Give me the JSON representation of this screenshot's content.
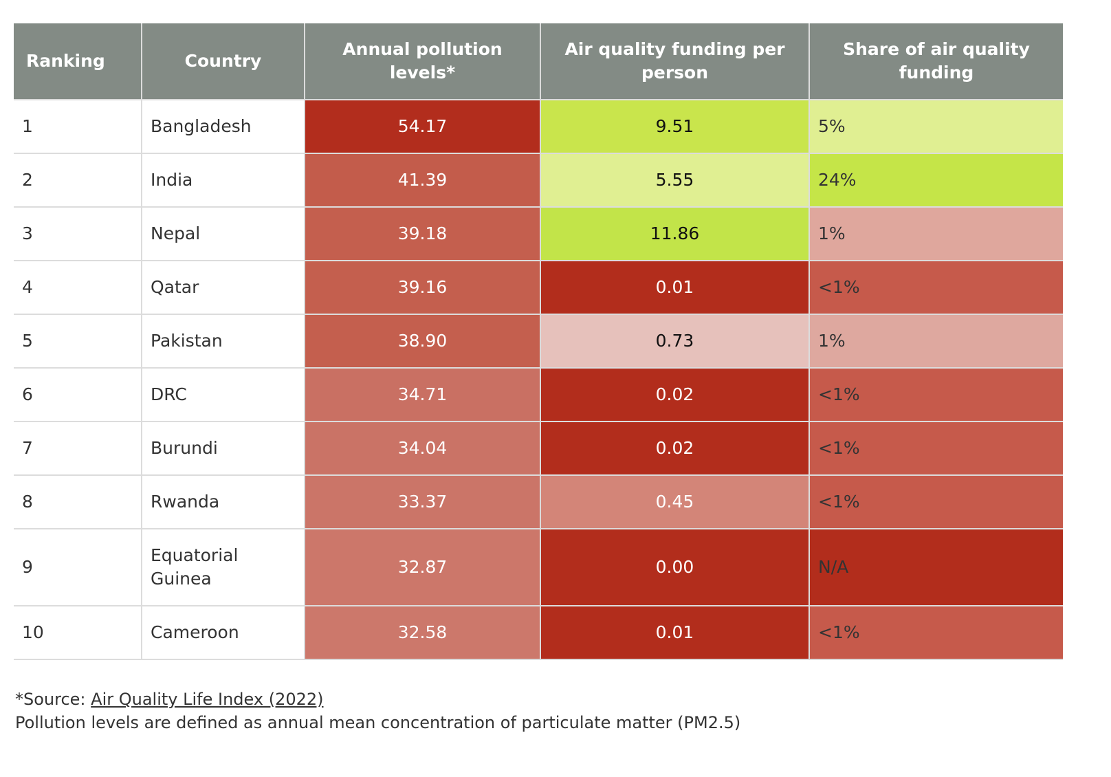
{
  "table": {
    "headers": [
      "Ranking",
      "Country",
      "Annual pollution levels*",
      "Air quality funding per person",
      "Share of air quality funding"
    ],
    "rows": [
      {
        "ranking": "1",
        "country": "Bangladesh",
        "pollution": "54.17",
        "funding_per_person": "9.51",
        "share": "5%",
        "colors": {
          "pollution": "#b22d1d",
          "funding_per_person": "#c9e54c",
          "share": "#e0ef92"
        },
        "text_colors": {
          "pollution": "#ffffff",
          "funding_per_person": "#111111",
          "share": "#333333"
        }
      },
      {
        "ranking": "2",
        "country": "India",
        "pollution": "41.39",
        "funding_per_person": "5.55",
        "share": "24%",
        "colors": {
          "pollution": "#c35c4b",
          "funding_per_person": "#e0ef92",
          "share": "#c5e548"
        },
        "text_colors": {
          "pollution": "#ffffff",
          "funding_per_person": "#111111",
          "share": "#333333"
        }
      },
      {
        "ranking": "3",
        "country": "Nepal",
        "pollution": "39.18",
        "funding_per_person": "11.86",
        "share": "1%",
        "colors": {
          "pollution": "#c45f4e",
          "funding_per_person": "#c2e449",
          "share": "#dfa79d"
        },
        "text_colors": {
          "pollution": "#ffffff",
          "funding_per_person": "#111111",
          "share": "#333333"
        }
      },
      {
        "ranking": "4",
        "country": "Qatar",
        "pollution": "39.16",
        "funding_per_person": "0.01",
        "share": "<1%",
        "colors": {
          "pollution": "#c45f4e",
          "funding_per_person": "#b22d1c",
          "share": "#c65a4b"
        },
        "text_colors": {
          "pollution": "#ffffff",
          "funding_per_person": "#ffffff",
          "share": "#333333"
        }
      },
      {
        "ranking": "5",
        "country": "Pakistan",
        "pollution": "38.90",
        "funding_per_person": "0.73",
        "share": "1%",
        "colors": {
          "pollution": "#c45f4e",
          "funding_per_person": "#e6c1bb",
          "share": "#dea89f"
        },
        "text_colors": {
          "pollution": "#ffffff",
          "funding_per_person": "#111111",
          "share": "#333333"
        }
      },
      {
        "ranking": "6",
        "country": "DRC",
        "pollution": "34.71",
        "funding_per_person": "0.02",
        "share": "<1%",
        "colors": {
          "pollution": "#c97063",
          "funding_per_person": "#b22d1c",
          "share": "#c65a4b"
        },
        "text_colors": {
          "pollution": "#ffffff",
          "funding_per_person": "#ffffff",
          "share": "#333333"
        }
      },
      {
        "ranking": "7",
        "country": "Burundi",
        "pollution": "34.04",
        "funding_per_person": "0.02",
        "share": "<1%",
        "colors": {
          "pollution": "#ca7366",
          "funding_per_person": "#b22d1c",
          "share": "#c65a4b"
        },
        "text_colors": {
          "pollution": "#ffffff",
          "funding_per_person": "#ffffff",
          "share": "#333333"
        }
      },
      {
        "ranking": "8",
        "country": "Rwanda",
        "pollution": "33.37",
        "funding_per_person": "0.45",
        "share": "<1%",
        "colors": {
          "pollution": "#cb7568",
          "funding_per_person": "#d38578",
          "share": "#c65a4b"
        },
        "text_colors": {
          "pollution": "#ffffff",
          "funding_per_person": "#ffffff",
          "share": "#333333"
        }
      },
      {
        "ranking": "9",
        "country": "Equatorial Guinea",
        "pollution": "32.87",
        "funding_per_person": "0.00",
        "share": "N/A",
        "colors": {
          "pollution": "#cc776a",
          "funding_per_person": "#b22d1c",
          "share": "#b22d1c"
        },
        "text_colors": {
          "pollution": "#ffffff",
          "funding_per_person": "#ffffff",
          "share": "#333333"
        }
      },
      {
        "ranking": "10",
        "country": "Cameroon",
        "pollution": "32.58",
        "funding_per_person": "0.01",
        "share": "<1%",
        "colors": {
          "pollution": "#cc786b",
          "funding_per_person": "#b22d1c",
          "share": "#c65a4b"
        },
        "text_colors": {
          "pollution": "#ffffff",
          "funding_per_person": "#ffffff",
          "share": "#333333"
        }
      }
    ]
  },
  "footer": {
    "source_prefix": "*Source: ",
    "source_link": "Air Quality Life Index (2022)",
    "note": "Pollution levels are defined as annual mean concentration of particulate matter (PM2.5)"
  }
}
